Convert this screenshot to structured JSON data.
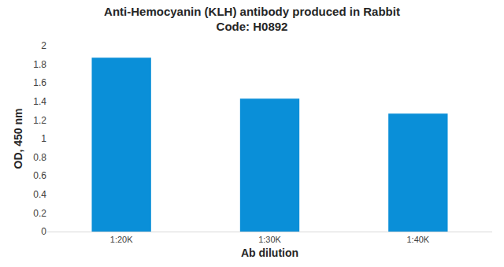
{
  "chart_data": {
    "type": "bar",
    "title": "Anti-Hemocyanin (KLH) antibody produced in Rabbit",
    "subtitle": "Code: H0892",
    "x_label": "Ab dilution",
    "y_label": "OD, 450 nm",
    "categories": [
      "1:20K",
      "1:30K",
      "1:40K"
    ],
    "values": [
      1.87,
      1.43,
      1.27
    ],
    "color": "#0a8fd8",
    "ylim": [
      0,
      2
    ],
    "yticks": [
      0,
      0.2,
      0.4,
      0.6,
      0.8,
      1,
      1.2,
      1.4,
      1.6,
      1.8,
      2
    ],
    "grid": false
  }
}
